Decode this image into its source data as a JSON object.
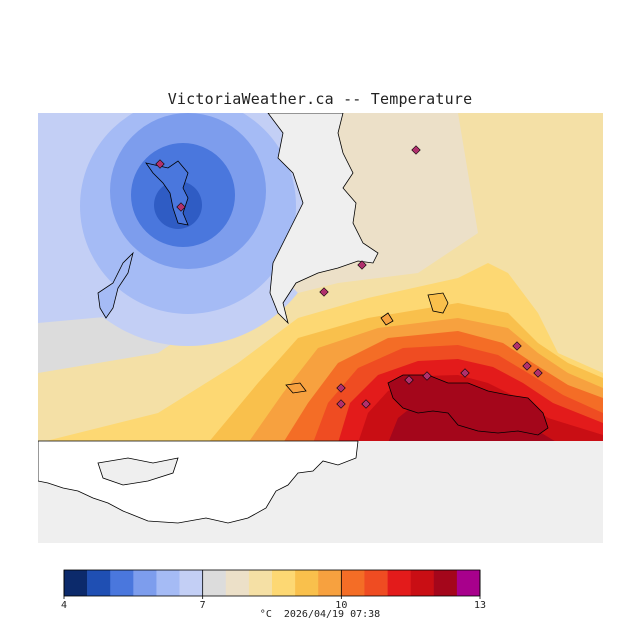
{
  "title": "VictoriaWeather.ca -- Temperature",
  "legend": {
    "min": 4,
    "max": 13,
    "ticks": [
      "4",
      "7",
      "10",
      "13"
    ],
    "colors": [
      "#0c2a6b",
      "#1f4fb3",
      "#4a77dd",
      "#7d9ded",
      "#a5bbf5",
      "#c3cff5",
      "#dcdcdc",
      "#ece0c8",
      "#f5e0a5",
      "#fdd873",
      "#f9c04c",
      "#f7a13f",
      "#f46d26",
      "#ef4c22",
      "#e31b1b",
      "#c90e14",
      "#a4061b",
      "#a8008c"
    ]
  },
  "footer": {
    "unit": "°C",
    "timestamp": "2026/04/19 07:38"
  }
}
